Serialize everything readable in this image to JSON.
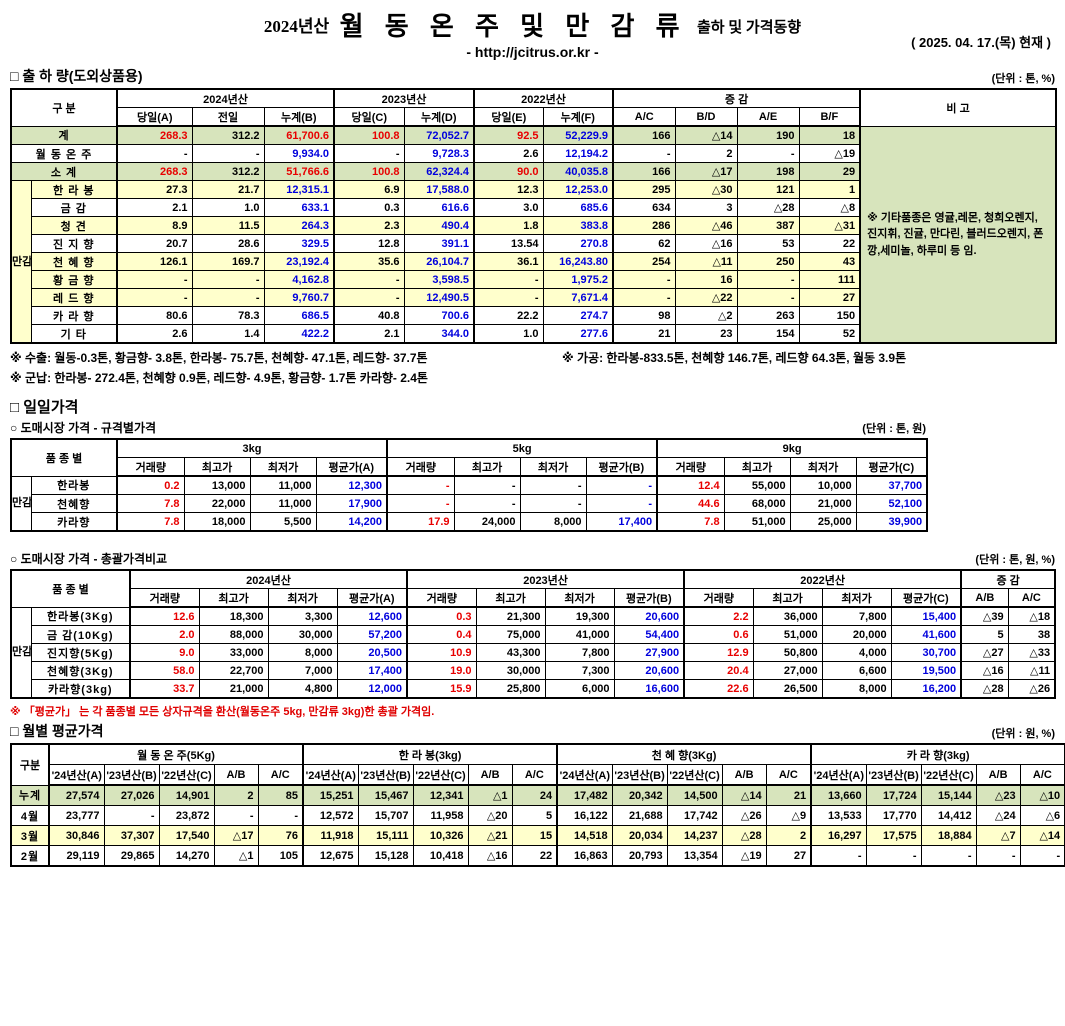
{
  "header": {
    "year_label": "2024년산",
    "title": "월 동 온 주 및 만 감 류",
    "subtitle": "출하 및 가격동향",
    "url": "- http://jcitrus.or.kr -",
    "date": "( 2025. 04. 17.(목) 현재 )"
  },
  "sections": {
    "shipment": {
      "title": "□ 출 하 량(도외상품용)",
      "unit": "(단위 : 톤, %)"
    },
    "daily": {
      "title": "□ 일일가격"
    },
    "spec_price": {
      "title": "○ 도매시장 가격 - 규격별가격",
      "unit": "(단위 : 톤, 원)"
    },
    "overall_price": {
      "title": "○ 도매시장 가격 - 총괄가격비교",
      "unit": "(단위 : 톤, 원, %)"
    },
    "monthly": {
      "title": "□ 월별 평균가격",
      "unit": "(단위 : 원, %)",
      "note": "※ 「평균가」 는 각 품종별 모든 상자규격을 환산(월동온주 5kg, 만감류 3kg)한 총괄 가격임."
    }
  },
  "notes": {
    "export": "※ 수출: 월동-0.3톤, 황금향- 3.8톤, 한라봉- 75.7톤, 천혜향- 47.1톤, 레드향- 37.7톤",
    "processing": "※ 가공:  한라봉-833.5톤, 천혜향 146.7톤, 레드향 64.3톤, 월동 3.9톤",
    "military": "※ 군납: 한라봉- 272.4톤, 천혜향 0.9톤, 레드향- 4.9톤, 황금향- 1.7톤 카라향- 2.4톤"
  },
  "tables": {
    "t1": {
      "cc": [
        "k gl",
        "k",
        "b",
        "k gl",
        "b",
        "k gl",
        "b",
        "k gl",
        "k",
        "k",
        "k"
      ],
      "hrows": [
        {
          "cells": [
            {
              "t": "구      분",
              "cs": 2,
              "rs": 2
            },
            {
              "t": "2024년산",
              "cs": 3,
              "cls": "gl"
            },
            {
              "t": "2023년산",
              "cs": 2,
              "cls": "gl"
            },
            {
              "t": "2022년산",
              "cs": 2,
              "cls": "gl"
            },
            {
              "t": "증      감",
              "cs": 4,
              "cls": "gl"
            },
            {
              "t": "비 고",
              "rs": 2,
              "cls": "gl"
            }
          ]
        },
        {
          "cells": [
            {
              "t": "당일(A)",
              "cls": "gl"
            },
            {
              "t": "전일"
            },
            {
              "t": "누계(B)"
            },
            {
              "t": "당일(C)",
              "cls": "gl"
            },
            {
              "t": "누계(D)"
            },
            {
              "t": "당일(E)",
              "cls": "gl"
            },
            {
              "t": "누계(F)"
            },
            {
              "t": "A/C",
              "cls": "gl"
            },
            {
              "t": "B/D"
            },
            {
              "t": "A/E"
            },
            {
              "t": "B/F"
            }
          ]
        }
      ],
      "rows": [
        {
          "cls": "g",
          "cells": [
            {
              "t": "계",
              "cs": 2,
              "cls": "lbl"
            },
            "268.3",
            "312.2",
            "61,700.6",
            "100.8",
            "72,052.7",
            "92.5",
            "52,229.9",
            "166",
            "△14",
            "190",
            "18",
            {
              "t": "※ 기타품종은 영귤,레몬, 청희오렌지, 진지휘, 진귤, 만다린, 블러드오렌지, 폰깡,세미놀, 하루미 등 임.",
              "cls": "remark gl",
              "rs": 12
            }
          ]
        },
        {
          "cells": [
            {
              "t": "월 동 온 주",
              "cs": 2,
              "cls": "lbl"
            },
            "-",
            "-",
            "9,934.0",
            "-",
            "9,728.3",
            "2.6",
            "12,194.2",
            "-",
            "2",
            "-",
            "△19"
          ]
        },
        {
          "cls": "g",
          "cells": [
            {
              "t": "소     계",
              "cs": 2,
              "cls": "lbl"
            },
            "268.3",
            "312.2",
            "51,766.6",
            "100.8",
            "62,324.4",
            "90.0",
            "40,035.8",
            "166",
            "△17",
            "198",
            "29"
          ]
        },
        {
          "cls": "y",
          "cells": [
            {
              "t": "만감류",
              "cls": "vlbl",
              "rs": 9
            },
            {
              "t": "한 라 봉",
              "cls": "lbl"
            },
            "27.3",
            "21.7",
            "12,315.1",
            "6.9",
            "17,588.0",
            "12.3",
            "12,253.0",
            "295",
            "△30",
            "121",
            "1"
          ]
        },
        {
          "cells": [
            {
              "t": "금    감",
              "cls": "lbl"
            },
            "2.1",
            "1.0",
            "633.1",
            "0.3",
            "616.6",
            "3.0",
            "685.6",
            "634",
            "3",
            "△28",
            "△8"
          ]
        },
        {
          "cls": "y",
          "cells": [
            {
              "t": "청    견",
              "cls": "lbl"
            },
            "8.9",
            "11.5",
            "264.3",
            "2.3",
            "490.4",
            "1.8",
            "383.8",
            "286",
            "△46",
            "387",
            "△31"
          ]
        },
        {
          "cells": [
            {
              "t": "진 지 향",
              "cls": "lbl"
            },
            "20.7",
            "28.6",
            "329.5",
            "12.8",
            "391.1",
            "13.54",
            "270.8",
            "62",
            "△16",
            "53",
            "22"
          ]
        },
        {
          "cls": "y",
          "cells": [
            {
              "t": "천 혜 향",
              "cls": "lbl"
            },
            "126.1",
            "169.7",
            "23,192.4",
            "35.6",
            "26,104.7",
            "36.1",
            "16,243.80",
            "254",
            "△11",
            "250",
            "43"
          ]
        },
        {
          "cls": "y",
          "cells": [
            {
              "t": "황 금 향",
              "cls": "lbl"
            },
            "-",
            "-",
            "4,162.8",
            "-",
            "3,598.5",
            "-",
            "1,975.2",
            "-",
            "16",
            "-",
            "111"
          ]
        },
        {
          "cls": "y",
          "cells": [
            {
              "t": "레 드 향",
              "cls": "lbl"
            },
            "-",
            "-",
            "9,760.7",
            "-",
            "12,490.5",
            "-",
            "7,671.4",
            "-",
            "△22",
            "-",
            "27"
          ]
        },
        {
          "cells": [
            {
              "t": "카 라 향",
              "cls": "lbl"
            },
            "80.6",
            "78.3",
            "686.5",
            "40.8",
            "700.6",
            "22.2",
            "274.7",
            "98",
            "△2",
            "263",
            "150"
          ]
        },
        {
          "cells": [
            {
              "t": "기    타",
              "cls": "lbl"
            },
            "2.6",
            "1.4",
            "422.2",
            "2.1",
            "344.0",
            "1.0",
            "277.6",
            "21",
            "23",
            "154",
            "52"
          ]
        }
      ]
    },
    "t2": {
      "cc": [
        "r gl",
        "k",
        "k",
        "b",
        "r gl",
        "k",
        "k",
        "b",
        "r gl",
        "k",
        "k",
        "b"
      ],
      "hrows": [
        {
          "cells": [
            {
              "t": "품 종 별",
              "cs": 2,
              "rs": 2
            },
            {
              "t": "3kg",
              "cs": 4,
              "cls": "gl"
            },
            {
              "t": "5kg",
              "cs": 4,
              "cls": "gl"
            },
            {
              "t": "9kg",
              "cs": 4,
              "cls": "gl"
            }
          ]
        },
        {
          "cells": [
            {
              "t": "거래량",
              "cls": "gl"
            },
            {
              "t": "최고가"
            },
            {
              "t": "최저가"
            },
            {
              "t": "평균가(A)"
            },
            {
              "t": "거래량",
              "cls": "gl"
            },
            {
              "t": "최고가"
            },
            {
              "t": "최저가"
            },
            {
              "t": "평균가(B)"
            },
            {
              "t": "거래량",
              "cls": "gl"
            },
            {
              "t": "최고가"
            },
            {
              "t": "최저가"
            },
            {
              "t": "평균가(C)"
            }
          ]
        }
      ],
      "rows": [
        {
          "cells": [
            {
              "t": "만감류",
              "cls": "vlbl",
              "rs": 3
            },
            {
              "t": "한라봉",
              "cls": "lbl"
            },
            "0.2",
            "13,000",
            "11,000",
            "12,300",
            "-",
            "-",
            "-",
            "-",
            "12.4",
            "55,000",
            "10,000",
            "37,700"
          ]
        },
        {
          "cells": [
            {
              "t": "천혜향",
              "cls": "lbl"
            },
            "7.8",
            "22,000",
            "11,000",
            "17,900",
            "-",
            "-",
            "-",
            "-",
            "44.6",
            "68,000",
            "21,000",
            "52,100"
          ]
        },
        {
          "cells": [
            {
              "t": "카라향",
              "cls": "lbl"
            },
            "7.8",
            "18,000",
            "5,500",
            "14,200",
            "17.9",
            "24,000",
            "8,000",
            "17,400",
            "7.8",
            "51,000",
            "25,000",
            "39,900"
          ]
        }
      ]
    },
    "t3": {
      "cc": [
        "r gl",
        "k",
        "k",
        "b",
        "r gl",
        "k",
        "k",
        "b",
        "r gl",
        "k",
        "k",
        "b",
        "k gl",
        "k dl"
      ],
      "hrows": [
        {
          "cells": [
            {
              "t": "품 종 별",
              "cs": 2,
              "rs": 2
            },
            {
              "t": "2024년산",
              "cs": 4,
              "cls": "gl"
            },
            {
              "t": "2023년산",
              "cs": 4,
              "cls": "gl"
            },
            {
              "t": "2022년산",
              "cs": 4,
              "cls": "gl"
            },
            {
              "t": "증    감",
              "cs": 2,
              "cls": "gl"
            }
          ]
        },
        {
          "cells": [
            {
              "t": "거래량",
              "cls": "gl"
            },
            {
              "t": "최고가"
            },
            {
              "t": "최저가"
            },
            {
              "t": "평균가(A)"
            },
            {
              "t": "거래량",
              "cls": "gl"
            },
            {
              "t": "최고가"
            },
            {
              "t": "최저가"
            },
            {
              "t": "평균가(B)"
            },
            {
              "t": "거래량",
              "cls": "gl"
            },
            {
              "t": "최고가"
            },
            {
              "t": "최저가"
            },
            {
              "t": "평균가(C)"
            },
            {
              "t": "A/B",
              "cls": "gl"
            },
            {
              "t": "A/C",
              "cls": "dl"
            }
          ]
        }
      ],
      "rows": [
        {
          "cells": [
            {
              "t": "만감류",
              "cls": "vlbl",
              "rs": 5
            },
            {
              "t": "한라봉(3Kg)",
              "cls": "lbl"
            },
            "12.6",
            "18,300",
            "3,300",
            "12,600",
            "0.3",
            "21,300",
            "19,300",
            "20,600",
            "2.2",
            "36,000",
            "7,800",
            "15,400",
            "△39",
            "△18"
          ]
        },
        {
          "cells": [
            {
              "t": "금 감(10Kg)",
              "cls": "lbl"
            },
            "2.0",
            "88,000",
            "30,000",
            "57,200",
            "0.4",
            "75,000",
            "41,000",
            "54,400",
            "0.6",
            "51,000",
            "20,000",
            "41,600",
            "5",
            "38"
          ]
        },
        {
          "cells": [
            {
              "t": "진지향(5Kg)",
              "cls": "lbl"
            },
            "9.0",
            "33,000",
            "8,000",
            "20,500",
            "10.9",
            "43,300",
            "7,800",
            "27,900",
            "12.9",
            "50,800",
            "4,000",
            "30,700",
            "△27",
            "△33"
          ]
        },
        {
          "cells": [
            {
              "t": "천혜향(3Kg)",
              "cls": "lbl"
            },
            "58.0",
            "22,700",
            "7,000",
            "17,400",
            "19.0",
            "30,000",
            "7,300",
            "20,600",
            "20.4",
            "27,000",
            "6,600",
            "19,500",
            "△16",
            "△11"
          ]
        },
        {
          "cells": [
            {
              "t": "카라향(3kg)",
              "cls": "lbl"
            },
            "33.7",
            "21,000",
            "4,800",
            "12,000",
            "15.9",
            "25,800",
            "6,000",
            "16,600",
            "22.6",
            "26,500",
            "8,000",
            "16,200",
            "△28",
            "△26"
          ]
        }
      ]
    },
    "t4": {
      "cc": [
        "k gl",
        "k",
        "k",
        "k",
        "k",
        "k gl",
        "k",
        "k",
        "k",
        "k",
        "k gl",
        "k",
        "k",
        "k",
        "k",
        "k gl",
        "k",
        "k",
        "k",
        "k"
      ],
      "hrows": [
        {
          "cells": [
            {
              "t": "구분",
              "rs": 2
            },
            {
              "t": "월 동 온 주(5Kg)",
              "cs": 5,
              "cls": "gl"
            },
            {
              "t": "한 라 봉(3kg)",
              "cs": 5,
              "cls": "gl"
            },
            {
              "t": "천 혜 향(3Kg)",
              "cs": 5,
              "cls": "gl"
            },
            {
              "t": "카 라 향(3kg)",
              "cs": 5,
              "cls": "gl"
            }
          ]
        },
        {
          "cells": [
            {
              "t": "'24년산(A)",
              "cls": "gl"
            },
            {
              "t": "'23년산(B)"
            },
            {
              "t": "'22년산(C)"
            },
            {
              "t": "A/B"
            },
            {
              "t": "A/C"
            },
            {
              "t": "'24년산(A)",
              "cls": "gl"
            },
            {
              "t": "'23년산(B)"
            },
            {
              "t": "'22년산(C)"
            },
            {
              "t": "A/B"
            },
            {
              "t": "A/C"
            },
            {
              "t": "'24년산(A)",
              "cls": "gl"
            },
            {
              "t": "'23년산(B)"
            },
            {
              "t": "'22년산(C)"
            },
            {
              "t": "A/B"
            },
            {
              "t": "A/C"
            },
            {
              "t": "'24년산(A)",
              "cls": "gl"
            },
            {
              "t": "'23년산(B)"
            },
            {
              "t": "'22년산(C)"
            },
            {
              "t": "A/B"
            },
            {
              "t": "A/C"
            }
          ]
        }
      ],
      "rows": [
        {
          "cls": "g",
          "cells": [
            {
              "t": "누계",
              "cls": "lbl"
            },
            "27,574",
            "27,026",
            "14,901",
            "2",
            "85",
            "15,251",
            "15,467",
            "12,341",
            "△1",
            "24",
            "17,482",
            "20,342",
            "14,500",
            "△14",
            "21",
            "13,660",
            "17,724",
            "15,144",
            "△23",
            "△10"
          ]
        },
        {
          "cells": [
            {
              "t": "4월",
              "cls": "lbl"
            },
            "23,777",
            "-",
            "23,872",
            "-",
            "-",
            "12,572",
            "15,707",
            "11,958",
            "△20",
            "5",
            "16,122",
            "21,688",
            "17,742",
            "△26",
            "△9",
            "13,533",
            "17,770",
            "14,412",
            "△24",
            "△6"
          ]
        },
        {
          "cls": "y",
          "cells": [
            {
              "t": "3월",
              "cls": "lbl"
            },
            "30,846",
            "37,307",
            "17,540",
            "△17",
            "76",
            "11,918",
            "15,111",
            "10,326",
            "△21",
            "15",
            "14,518",
            "20,034",
            "14,237",
            "△28",
            "2",
            "16,297",
            "17,575",
            "18,884",
            "△7",
            "△14"
          ]
        },
        {
          "cells": [
            {
              "t": "2월",
              "cls": "lbl"
            },
            "29,119",
            "29,865",
            "14,270",
            "△1",
            "105",
            "12,675",
            "15,128",
            "10,418",
            "△16",
            "22",
            "16,863",
            "20,793",
            "13,354",
            "△19",
            "27",
            "-",
            "-",
            "-",
            "-",
            "-"
          ]
        }
      ]
    }
  }
}
